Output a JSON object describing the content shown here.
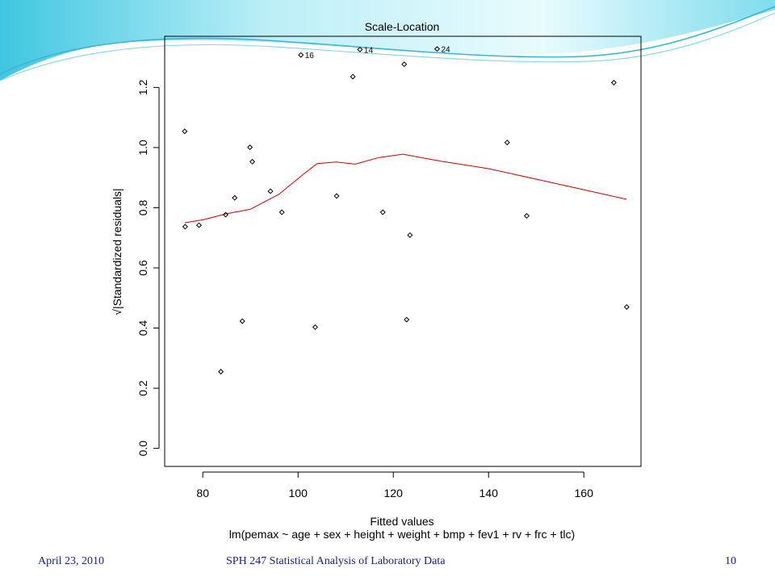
{
  "footer": {
    "date": "April 23, 2010",
    "course": "SPH 247 Statistical Analysis of Laboratory Data",
    "page": "10"
  },
  "colors": {
    "theme_gradient_light": "#e6fafd",
    "theme_gradient_dark": "#5bd0e6",
    "footer_text": "#1a237e",
    "smoother_line": "#cc0000",
    "points": "#000000"
  },
  "chart_data": {
    "type": "scatter",
    "title": "Scale-Location",
    "xlabel": "Fitted values",
    "subtitle": "lm(pemax ~ age + sex + height + weight + bmp + fev1 + rv + frc + tlc)",
    "ylabel": "√|Standardized residuals|",
    "xlim": [
      72,
      172
    ],
    "ylim": [
      -0.06,
      1.37
    ],
    "x_ticks": [
      80,
      100,
      120,
      140,
      160
    ],
    "y_ticks": [
      0.0,
      0.2,
      0.4,
      0.6,
      0.8,
      1.0,
      1.2
    ],
    "x_tick_labels": [
      "80",
      "100",
      "120",
      "140",
      "160"
    ],
    "y_tick_labels": [
      "0.0",
      "0.2",
      "0.4",
      "0.6",
      "0.8",
      "1.0",
      "1.2"
    ],
    "grid": false,
    "points": [
      {
        "x": 76.2,
        "y": 1.054
      },
      {
        "x": 76.3,
        "y": 0.737
      },
      {
        "x": 79.2,
        "y": 0.742
      },
      {
        "x": 83.8,
        "y": 0.255
      },
      {
        "x": 84.8,
        "y": 0.777
      },
      {
        "x": 86.7,
        "y": 0.833
      },
      {
        "x": 88.3,
        "y": 0.423
      },
      {
        "x": 89.9,
        "y": 1.001
      },
      {
        "x": 90.4,
        "y": 0.953
      },
      {
        "x": 94.2,
        "y": 0.855
      },
      {
        "x": 96.6,
        "y": 0.785
      },
      {
        "x": 100.6,
        "y": 1.308,
        "label": "16"
      },
      {
        "x": 103.6,
        "y": 0.403
      },
      {
        "x": 108.1,
        "y": 0.839
      },
      {
        "x": 111.5,
        "y": 1.236
      },
      {
        "x": 113.0,
        "y": 1.326,
        "label": "14"
      },
      {
        "x": 117.8,
        "y": 0.785
      },
      {
        "x": 122.3,
        "y": 1.277
      },
      {
        "x": 122.8,
        "y": 0.428
      },
      {
        "x": 123.5,
        "y": 0.709
      },
      {
        "x": 129.2,
        "y": 1.328,
        "label": "24"
      },
      {
        "x": 143.9,
        "y": 1.017
      },
      {
        "x": 148.0,
        "y": 0.773
      },
      {
        "x": 166.3,
        "y": 1.216
      },
      {
        "x": 169.0,
        "y": 0.47
      }
    ],
    "smoother": {
      "x": [
        76.2,
        80,
        85,
        90,
        96,
        101,
        104,
        108,
        112,
        117,
        122,
        130,
        140,
        150,
        160,
        169
      ],
      "y": [
        0.75,
        0.76,
        0.78,
        0.795,
        0.845,
        0.91,
        0.947,
        0.952,
        0.945,
        0.967,
        0.978,
        0.955,
        0.93,
        0.895,
        0.86,
        0.828
      ]
    }
  }
}
